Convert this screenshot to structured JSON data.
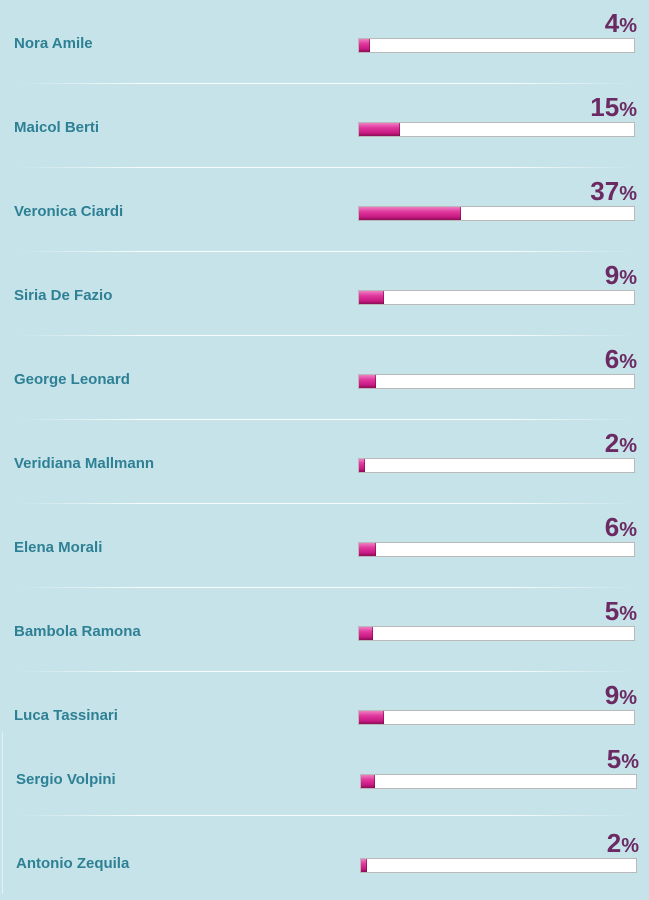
{
  "poll": {
    "percent_sign": "%",
    "entries": [
      {
        "name": "Nora Amile",
        "percent": 4
      },
      {
        "name": "Maicol Berti",
        "percent": 15
      },
      {
        "name": "Veronica Ciardi",
        "percent": 37
      },
      {
        "name": "Siria De Fazio",
        "percent": 9
      },
      {
        "name": "George Leonard",
        "percent": 6
      },
      {
        "name": "Veridiana Mallmann",
        "percent": 2
      },
      {
        "name": "Elena Morali",
        "percent": 6
      },
      {
        "name": "Bambola Ramona",
        "percent": 5
      },
      {
        "name": "Luca Tassinari",
        "percent": 9
      },
      {
        "name": "Sergio Volpini",
        "percent": 5
      },
      {
        "name": "Antonio Zequila",
        "percent": 2
      }
    ]
  },
  "colors": {
    "background": "#c5e3e8",
    "name_text": "#2e8095",
    "percent_text": "#6b2a63",
    "bar_fill": "#d9288f",
    "bar_track": "#ffffff"
  }
}
